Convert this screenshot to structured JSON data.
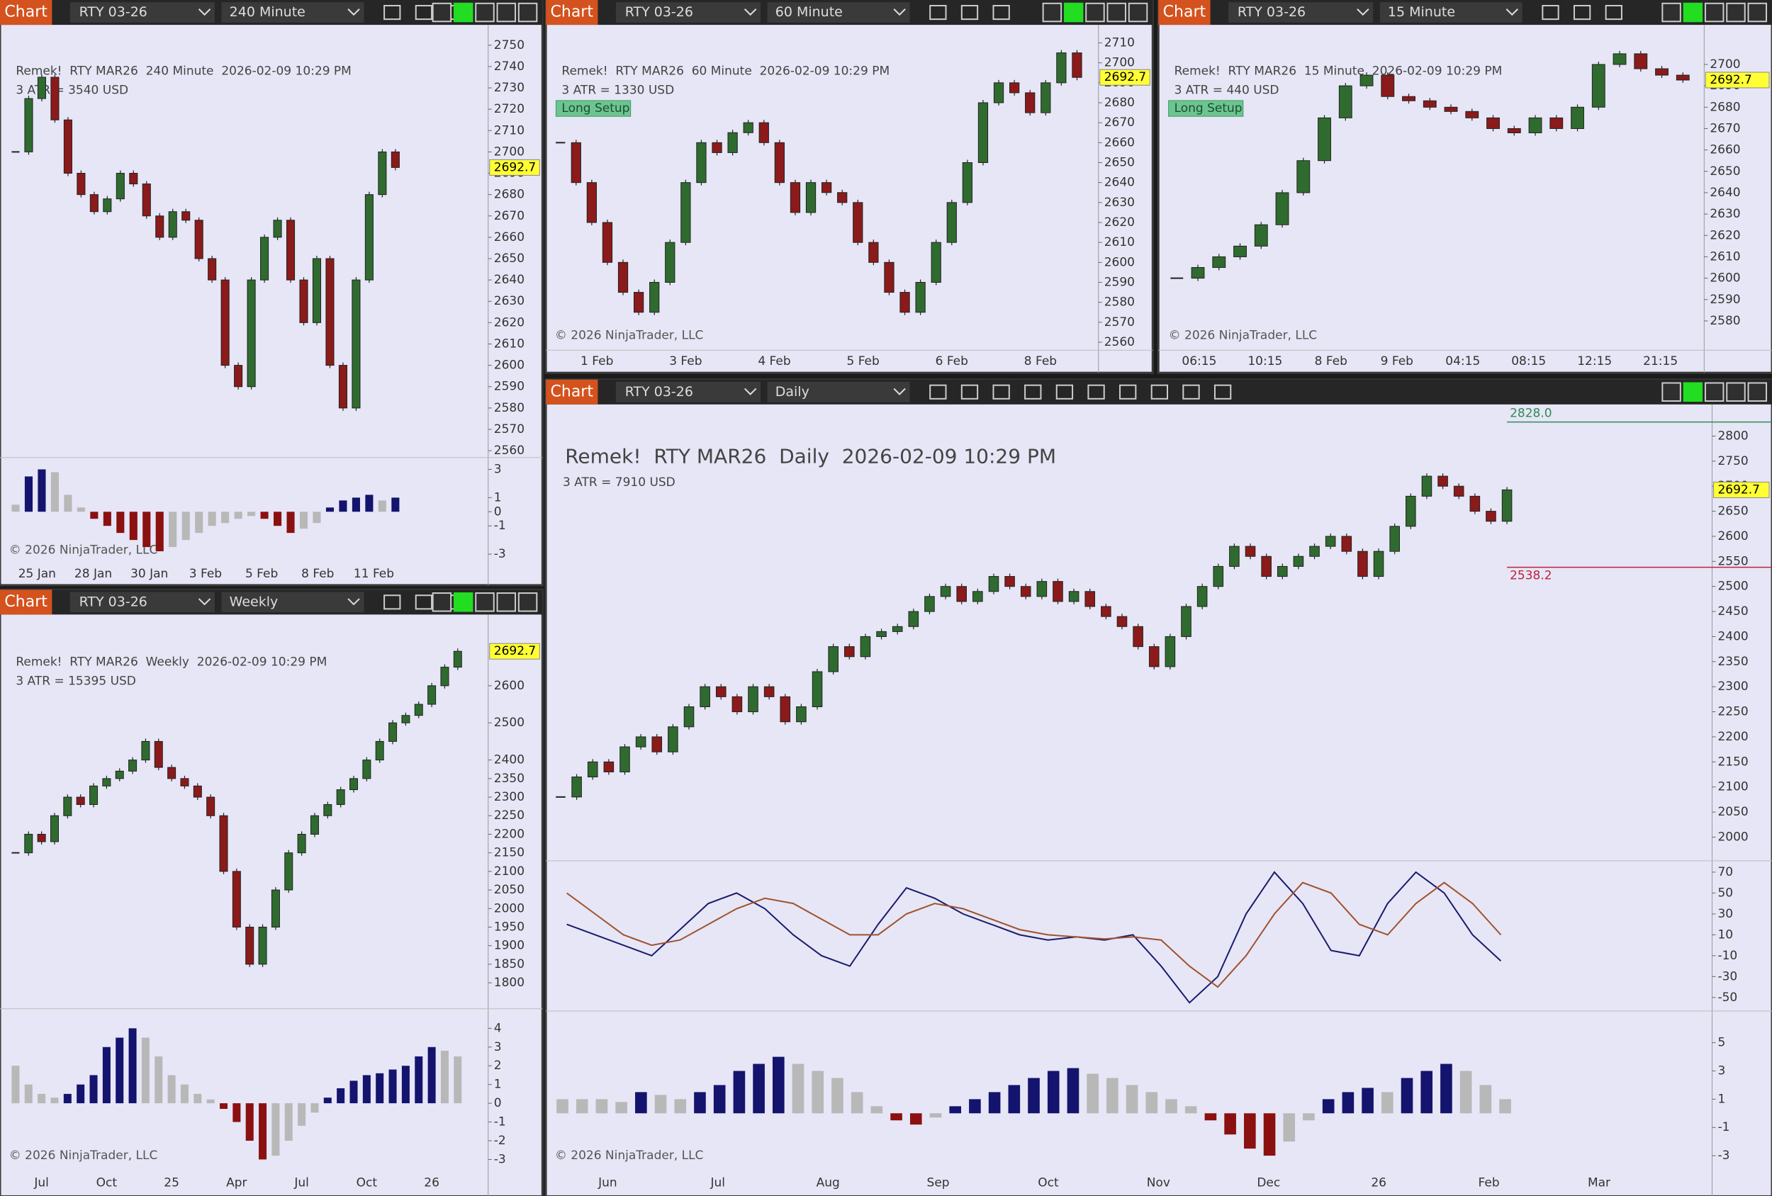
{
  "chart_data": [
    {
      "type": "candlestick",
      "toolbar": {
        "tab": "Chart",
        "instrument": "RTY 03-26",
        "interval": "240 Minute"
      },
      "title": "Remek!  RTY MAR26  240 Minute  2026-02-09 10:29 PM",
      "subtitle": "3 ATR = 3540 USD",
      "copyright": "© 2026 NinjaTrader, LLC",
      "closes": [
        2700,
        2725,
        2735,
        2715,
        2690,
        2680,
        2672,
        2678,
        2690,
        2685,
        2670,
        2660,
        2672,
        2668,
        2650,
        2640,
        2600,
        2590,
        2640,
        2660,
        2668,
        2640,
        2620,
        2650,
        2600,
        2580,
        2640,
        2680,
        2700,
        2692.7
      ],
      "ylim": [
        2556.8,
        2755.3
      ],
      "yticks": [
        2560,
        2570,
        2580,
        2590,
        2600,
        2610,
        2620,
        2630,
        2640,
        2650,
        2660,
        2670,
        2680,
        2690,
        2700,
        2710,
        2720,
        2730,
        2740,
        2750
      ],
      "last_price": {
        "value": 2692.7,
        "label": "2692.7"
      },
      "date_labels": [
        "25 Jan",
        "28 Jan",
        "30 Jan",
        "3 Feb",
        "5 Feb",
        "8 Feb",
        "11 Feb"
      ],
      "oscillator": {
        "ylim": [
          -3.6,
          3.6
        ],
        "yticks": [
          -3,
          -1,
          0,
          1,
          3
        ],
        "values": [
          0.5,
          2.5,
          3,
          2.8,
          1.2,
          0.3,
          -0.5,
          -1,
          -1.5,
          -2,
          -2.5,
          -2.8,
          -2.5,
          -2,
          -1.5,
          -1,
          -0.8,
          -0.5,
          -0.3,
          -0.5,
          -1,
          -1.5,
          -1.2,
          -0.8,
          0.3,
          0.8,
          1,
          1.2,
          0.8,
          1
        ]
      }
    },
    {
      "type": "candlestick",
      "toolbar": {
        "tab": "Chart",
        "instrument": "RTY 03-26",
        "interval": "60 Minute"
      },
      "title": "Remek!  RTY MAR26  60 Minute  2026-02-09 10:29 PM",
      "subtitle": "3 ATR = 1330 USD",
      "annotation": "Long Setup",
      "copyright": "© 2026 NinjaTrader, LLC",
      "closes": [
        2660,
        2640,
        2620,
        2600,
        2585,
        2575,
        2590,
        2610,
        2640,
        2660,
        2655,
        2665,
        2670,
        2660,
        2640,
        2625,
        2640,
        2635,
        2630,
        2610,
        2600,
        2585,
        2575,
        2590,
        2610,
        2630,
        2650,
        2680,
        2690,
        2685,
        2675,
        2690,
        2705,
        2692.7
      ],
      "ylim": [
        2556,
        2714.5
      ],
      "yticks": [
        2560,
        2570,
        2580,
        2590,
        2600,
        2610,
        2620,
        2630,
        2640,
        2650,
        2660,
        2670,
        2680,
        2690,
        2700,
        2710
      ],
      "last_price": {
        "value": 2692.7,
        "label": "2692.7"
      },
      "date_labels": [
        "1 Feb",
        "3 Feb",
        "4 Feb",
        "5 Feb",
        "6 Feb",
        "8 Feb"
      ]
    },
    {
      "type": "candlestick",
      "toolbar": {
        "tab": "Chart",
        "instrument": "RTY 03-26",
        "interval": "15 Minute"
      },
      "title": "Remek!  RTY MAR26  15 Minute  2026-02-09 10:29 PM",
      "subtitle": "3 ATR = 440 USD",
      "annotation": "Long Setup",
      "copyright": "© 2026 NinjaTrader, LLC",
      "closes": [
        2600,
        2605,
        2610,
        2615,
        2625,
        2640,
        2655,
        2675,
        2690,
        2695,
        2685,
        2683,
        2680,
        2678,
        2675,
        2670,
        2668,
        2675,
        2670,
        2680,
        2700,
        2705,
        2698,
        2695,
        2692.7
      ],
      "ylim": [
        2566.3,
        2714.3
      ],
      "yticks": [
        2580,
        2590,
        2600,
        2610,
        2620,
        2630,
        2640,
        2650,
        2660,
        2670,
        2680,
        2690,
        2700
      ],
      "last_price": {
        "value": 2692.7,
        "label": "2692.7"
      },
      "date_labels": [
        "06:15",
        "10:15",
        "8 Feb",
        "9 Feb",
        "04:15",
        "08:15",
        "12:15",
        "21:15"
      ]
    },
    {
      "type": "candlestick",
      "toolbar": {
        "tab": "Chart",
        "instrument": "RTY 03-26",
        "interval": "Weekly"
      },
      "title": "Remek!  RTY MAR26  Weekly  2026-02-09 10:29 PM",
      "subtitle": "3 ATR = 15395 USD",
      "copyright": "© 2026 NinjaTrader, LLC",
      "closes": [
        2150,
        2200,
        2180,
        2250,
        2300,
        2280,
        2330,
        2350,
        2370,
        2400,
        2450,
        2380,
        2350,
        2330,
        2300,
        2250,
        2100,
        1950,
        1850,
        1950,
        2050,
        2150,
        2200,
        2250,
        2280,
        2320,
        2350,
        2400,
        2450,
        2500,
        2520,
        2550,
        2600,
        2650,
        2692.7
      ],
      "ylim": [
        1730,
        2743
      ],
      "yticks": [
        1800,
        1850,
        1900,
        1950,
        2000,
        2050,
        2100,
        2150,
        2200,
        2250,
        2300,
        2350,
        2400,
        2500,
        2600
      ],
      "last_price": {
        "value": 2692.7,
        "label": "2692.7"
      },
      "date_labels": [
        "Jul",
        "Oct",
        "25",
        "Apr",
        "Jul",
        "Oct",
        "26"
      ],
      "oscillator": {
        "ylim": [
          -3.4,
          4.8
        ],
        "yticks": [
          -3,
          -2,
          -1,
          0,
          1,
          2,
          3,
          4
        ],
        "values": [
          2,
          1,
          0.5,
          0.3,
          0.5,
          1,
          1.5,
          3,
          3.5,
          4,
          3.5,
          2.5,
          1.5,
          1,
          0.5,
          0.2,
          -0.3,
          -1,
          -2,
          -3,
          -2.8,
          -2,
          -1.2,
          -0.5,
          0.3,
          0.8,
          1.2,
          1.5,
          1.6,
          1.8,
          2,
          2.5,
          3,
          2.8,
          2.5
        ]
      }
    },
    {
      "type": "candlestick",
      "toolbar": {
        "tab": "Chart",
        "instrument": "RTY 03-26",
        "interval": "Daily"
      },
      "title": "Remek!  RTY MAR26  Daily  2026-02-09 10:29 PM",
      "subtitle": "3 ATR = 7910 USD",
      "copyright": "© 2026 NinjaTrader, LLC",
      "closes": [
        2080,
        2120,
        2150,
        2130,
        2180,
        2200,
        2170,
        2220,
        2260,
        2300,
        2280,
        2250,
        2300,
        2280,
        2230,
        2260,
        2330,
        2380,
        2360,
        2400,
        2410,
        2420,
        2450,
        2480,
        2500,
        2470,
        2490,
        2520,
        2500,
        2480,
        2510,
        2470,
        2490,
        2460,
        2440,
        2420,
        2380,
        2340,
        2400,
        2460,
        2500,
        2540,
        2580,
        2560,
        2520,
        2540,
        2560,
        2580,
        2600,
        2570,
        2520,
        2570,
        2620,
        2680,
        2720,
        2700,
        2680,
        2650,
        2630,
        2692.7
      ],
      "ylim": [
        1952.7,
        2840.6
      ],
      "yticks": [
        2000,
        2050,
        2100,
        2150,
        2200,
        2250,
        2300,
        2350,
        2400,
        2450,
        2500,
        2550,
        2600,
        2650,
        2700,
        2750,
        2800
      ],
      "last_price": {
        "value": 2692.7,
        "label": "2692.7"
      },
      "levels": [
        {
          "value": 2828,
          "label": "2828.0",
          "color": "#2e8b57"
        },
        {
          "value": 2538.2,
          "label": "2538.2",
          "color": "#c0203a"
        }
      ],
      "date_labels": [
        "Jun",
        "Jul",
        "Aug",
        "Sep",
        "Oct",
        "Nov",
        "Dec",
        "26",
        "Feb",
        "Mar"
      ],
      "lines": {
        "ylim": [
          -63,
          77.6
        ],
        "yticks": [
          -50,
          -30,
          -10,
          10,
          30,
          50,
          70
        ],
        "series": [
          {
            "color": "#1a1a6e",
            "values": [
              20,
              10,
              0,
              -10,
              15,
              40,
              50,
              35,
              10,
              -10,
              -20,
              20,
              55,
              45,
              30,
              20,
              10,
              5,
              8,
              5,
              10,
              -20,
              -55,
              -30,
              30,
              70,
              40,
              -5,
              -10,
              40,
              70,
              50,
              10,
              -15
            ]
          },
          {
            "color": "#a0522d",
            "values": [
              50,
              30,
              10,
              0,
              5,
              20,
              35,
              45,
              40,
              25,
              10,
              10,
              30,
              40,
              35,
              25,
              15,
              10,
              8,
              6,
              8,
              5,
              -20,
              -40,
              -10,
              30,
              60,
              50,
              20,
              10,
              40,
              60,
              40,
              10
            ]
          }
        ]
      },
      "oscillator": {
        "ylim": [
          -3.8,
          7
        ],
        "yticks": [
          -3,
          -1,
          1,
          3,
          5
        ],
        "values": [
          1,
          1,
          1,
          0.8,
          1.5,
          1.3,
          1,
          1.5,
          2,
          3,
          3.5,
          4,
          3.5,
          3,
          2.5,
          1.5,
          0.5,
          -0.5,
          -0.8,
          -0.3,
          0.5,
          1,
          1.5,
          2,
          2.5,
          3,
          3.2,
          2.8,
          2.5,
          2,
          1.5,
          1,
          0.5,
          -0.5,
          -1.5,
          -2.5,
          -3,
          -2,
          -0.5,
          1,
          1.5,
          1.8,
          1.5,
          2.5,
          3,
          3.5,
          3,
          2,
          1
        ]
      }
    }
  ]
}
